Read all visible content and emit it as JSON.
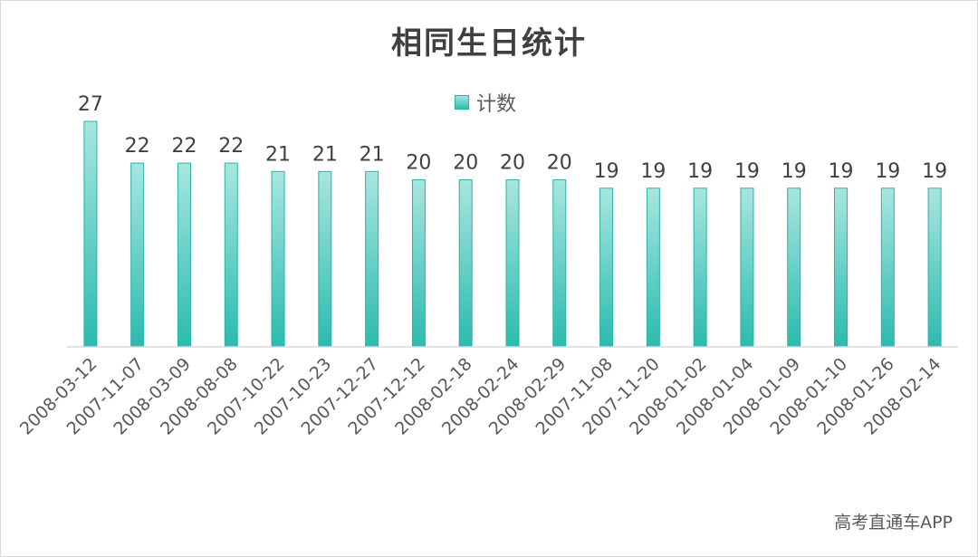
{
  "title": "相同生日统计",
  "legend": {
    "label": "计数"
  },
  "watermark": "高考直通车APP",
  "colors": {
    "bar_top": "#a8e6df",
    "bar_bottom": "#2bbbae",
    "bar_stroke": "#2ab3a6",
    "axis": "#d9d9d9"
  },
  "chart_data": {
    "type": "bar",
    "title": "相同生日统计",
    "xlabel": "",
    "ylabel": "",
    "legend": [
      "计数"
    ],
    "legend_position": "top",
    "grid": false,
    "ylim": [
      0,
      27
    ],
    "categories": [
      "2008-03-12",
      "2007-11-07",
      "2008-03-09",
      "2008-08-08",
      "2007-10-22",
      "2007-10-23",
      "2007-12-27",
      "2007-12-12",
      "2008-02-18",
      "2008-02-24",
      "2008-02-29",
      "2007-11-08",
      "2007-11-20",
      "2008-01-02",
      "2008-01-04",
      "2008-01-09",
      "2008-01-10",
      "2008-01-26",
      "2008-02-14"
    ],
    "series": [
      {
        "name": "计数",
        "values": [
          27,
          22,
          22,
          22,
          21,
          21,
          21,
          20,
          20,
          20,
          20,
          19,
          19,
          19,
          19,
          19,
          19,
          19,
          19
        ]
      }
    ]
  }
}
